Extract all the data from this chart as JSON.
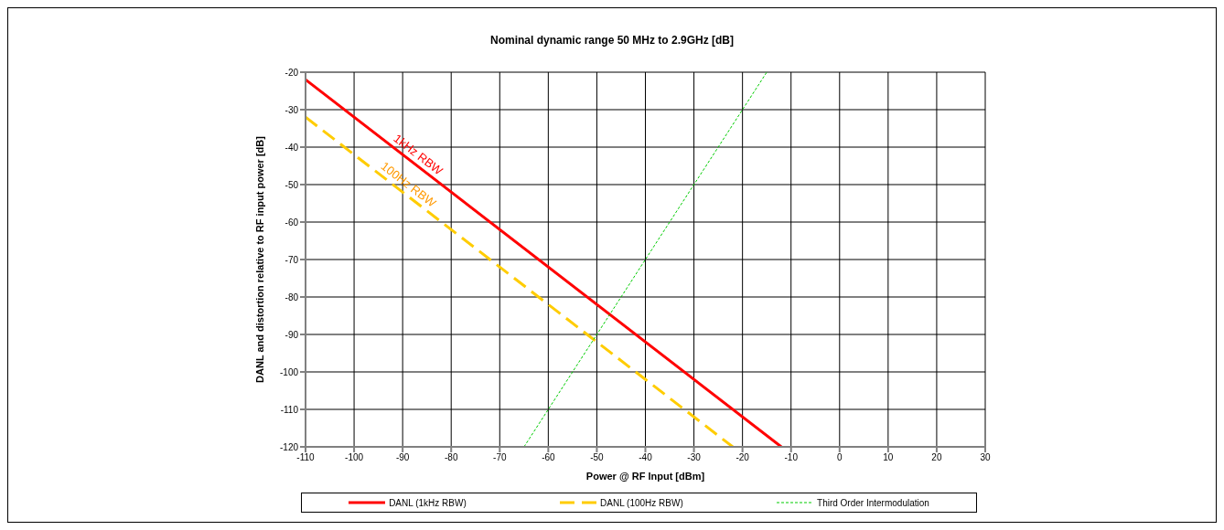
{
  "chart_data": {
    "type": "line",
    "title": "Nominal dynamic range  50 MHz to 2.9GHz [dB]",
    "xlabel": "Power @ RF Input [dBm]",
    "ylabel": "DANL  and distortion relative to RF input power [dB]",
    "series": [
      {
        "name": "DANL (1kHz RBW)",
        "color": "#ff0000",
        "line_style": "solid",
        "x": [
          -110,
          -12
        ],
        "values": [
          -22,
          -120
        ]
      },
      {
        "name": "DANL (100Hz RBW)",
        "color": "#ffcc00",
        "line_style": "dashed",
        "x": [
          -110,
          -22
        ],
        "values": [
          -32,
          -120
        ]
      },
      {
        "name": "Third Order Intermodulation",
        "color": "#00cc00",
        "line_style": "dotted",
        "x": [
          -65,
          -15
        ],
        "values": [
          -120,
          -20
        ]
      }
    ],
    "annotations": [
      {
        "text": "1kHz RBW",
        "x": -88,
        "y": -44
      },
      {
        "text": "100Hz RBW",
        "x": -90,
        "y": -52
      }
    ],
    "xlim": [
      -110,
      30
    ],
    "xticks": [
      -110,
      -100,
      -90,
      -80,
      -70,
      -60,
      -50,
      -40,
      -30,
      -20,
      -10,
      0,
      10,
      20,
      30
    ],
    "ylim": [
      -120,
      -20
    ],
    "yticks": [
      -120,
      -110,
      -100,
      -90,
      -80,
      -70,
      -60,
      -50,
      -40,
      -30,
      -20
    ],
    "grid": true,
    "legend": "bottom",
    "marker": "none"
  }
}
